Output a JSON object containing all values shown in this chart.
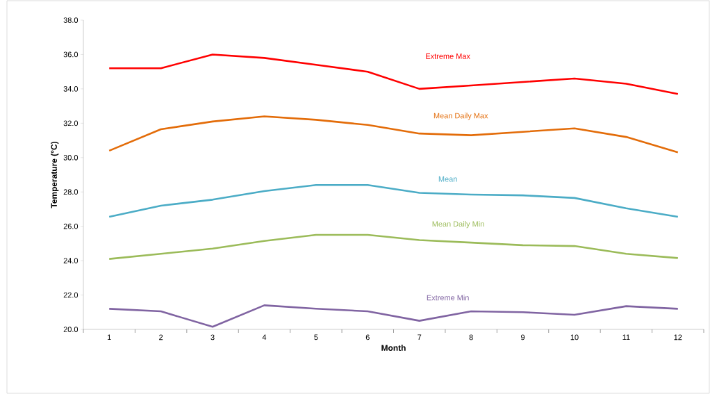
{
  "chart_data": {
    "type": "line",
    "xlabel": "Month",
    "ylabel": "Temperature (°C)",
    "categories": [
      "1",
      "2",
      "3",
      "4",
      "5",
      "6",
      "7",
      "8",
      "9",
      "10",
      "11",
      "12"
    ],
    "series": [
      {
        "name": "Extreme Max",
        "color": "#ff0000",
        "values": [
          35.2,
          35.2,
          36.0,
          35.8,
          35.4,
          35.0,
          34.0,
          34.2,
          34.4,
          34.6,
          34.3,
          33.7
        ]
      },
      {
        "name": "Mean Daily Max",
        "color": "#e36c09",
        "values": [
          30.4,
          31.65,
          32.1,
          32.4,
          32.2,
          31.9,
          31.4,
          31.3,
          31.5,
          31.7,
          31.2,
          30.3
        ]
      },
      {
        "name": "Mean",
        "color": "#4bacc6",
        "values": [
          26.55,
          27.2,
          27.55,
          28.05,
          28.4,
          28.4,
          27.95,
          27.85,
          27.8,
          27.65,
          27.05,
          26.55
        ]
      },
      {
        "name": "Mean Daily Min",
        "color": "#9bbb59",
        "values": [
          24.1,
          24.4,
          24.7,
          25.15,
          25.5,
          25.5,
          25.2,
          25.05,
          24.9,
          24.85,
          24.4,
          24.15
        ]
      },
      {
        "name": "Extreme Min",
        "color": "#8064a2",
        "values": [
          21.2,
          21.05,
          20.15,
          21.4,
          21.2,
          21.05,
          20.5,
          21.05,
          21.0,
          20.85,
          21.35,
          21.2
        ]
      }
    ],
    "ylim": [
      20,
      38
    ],
    "yticks": [
      {
        "value": 20,
        "label": "20.0"
      },
      {
        "value": 22,
        "label": "22.0"
      },
      {
        "value": 24,
        "label": "24.0"
      },
      {
        "value": 26,
        "label": "26.0"
      },
      {
        "value": 28,
        "label": "28.0"
      },
      {
        "value": 30,
        "label": "30.0"
      },
      {
        "value": 32,
        "label": "32.0"
      },
      {
        "value": 34,
        "label": "34.0"
      },
      {
        "value": 36,
        "label": "36.0"
      },
      {
        "value": 38,
        "label": "38.0"
      }
    ],
    "grid": false,
    "legend": false,
    "marker": "none",
    "line_style": "solid"
  }
}
